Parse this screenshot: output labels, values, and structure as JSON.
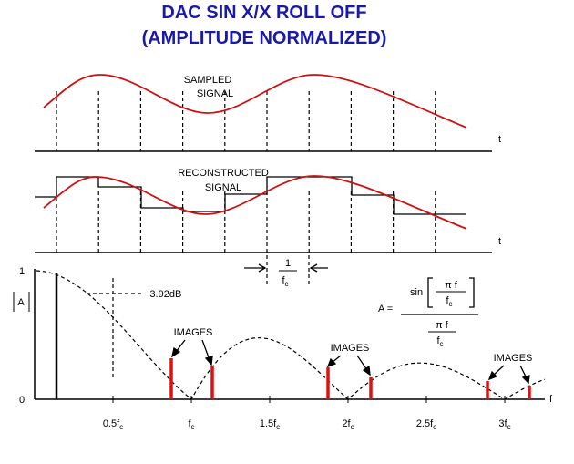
{
  "title": [
    "DAC SIN X/X ROLL OFF",
    "(AMPLITUDE NORMALIZED)"
  ],
  "sampled": {
    "label": [
      "SAMPLED",
      "SIGNAL"
    ],
    "axis": "t"
  },
  "reconstructed": {
    "label": [
      "RECONSTRUCTED",
      "SIGNAL"
    ],
    "axis": "t"
  },
  "period": {
    "numerator": "1",
    "denominator": "f",
    "sub": "c"
  },
  "formula": {
    "lhs": "A =",
    "func": "sin",
    "inner_num": "π f",
    "inner_den": "f",
    "inner_sub": "c",
    "outer_num": "π f",
    "outer_den": "f",
    "outer_sub": "c"
  },
  "spectrum": {
    "y_labels": [
      "1",
      "0"
    ],
    "y_title": "A",
    "axis": "f",
    "marker": "−3.92dB",
    "images": [
      "IMAGES",
      "IMAGES",
      "IMAGES"
    ],
    "x_ticks": [
      {
        "base": "0.5f",
        "sub": "c"
      },
      {
        "base": "f",
        "sub": "c"
      },
      {
        "base": "1.5f",
        "sub": "c"
      },
      {
        "base": "2f",
        "sub": "c"
      },
      {
        "base": "2.5f",
        "sub": "c"
      },
      {
        "base": "3f",
        "sub": "c"
      }
    ]
  }
}
